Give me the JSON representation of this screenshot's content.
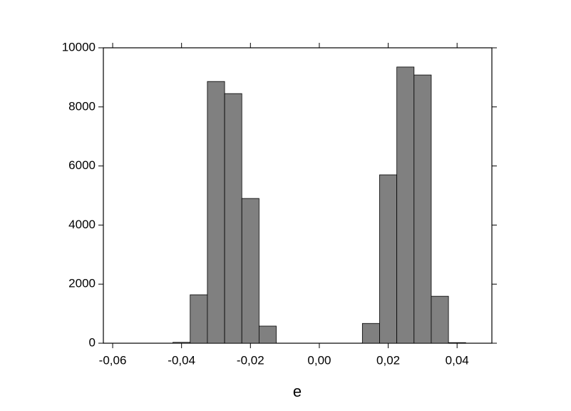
{
  "chart_data": {
    "type": "histogram",
    "x_label": "e",
    "bins": [
      -0.0425,
      -0.0375,
      -0.0325,
      -0.0275,
      -0.0225,
      -0.0175,
      -0.0125,
      -0.0075,
      -0.0025,
      0.0025,
      0.0075,
      0.0125,
      0.0175,
      0.0225,
      0.0275,
      0.0325,
      0.0375,
      0.0425
    ],
    "values": [
      30,
      1640,
      8860,
      8450,
      4900,
      580,
      0,
      0,
      0,
      0,
      0,
      670,
      5700,
      9350,
      9080,
      1590,
      20
    ],
    "color": "#808080",
    "xlim": [
      -0.0627,
      0.0501
    ],
    "xticks": [
      {
        "value": -0.06,
        "label": "-0,06"
      },
      {
        "value": -0.04,
        "label": "-0,04"
      },
      {
        "value": -0.02,
        "label": "-0,02"
      },
      {
        "value": 0,
        "label": "0,00"
      },
      {
        "value": 0.02,
        "label": "0,02"
      },
      {
        "value": 0.04,
        "label": "0,04"
      }
    ],
    "ylim": [
      0,
      10000
    ],
    "yticks": [
      0,
      2000,
      4000,
      6000,
      8000,
      10000
    ]
  }
}
